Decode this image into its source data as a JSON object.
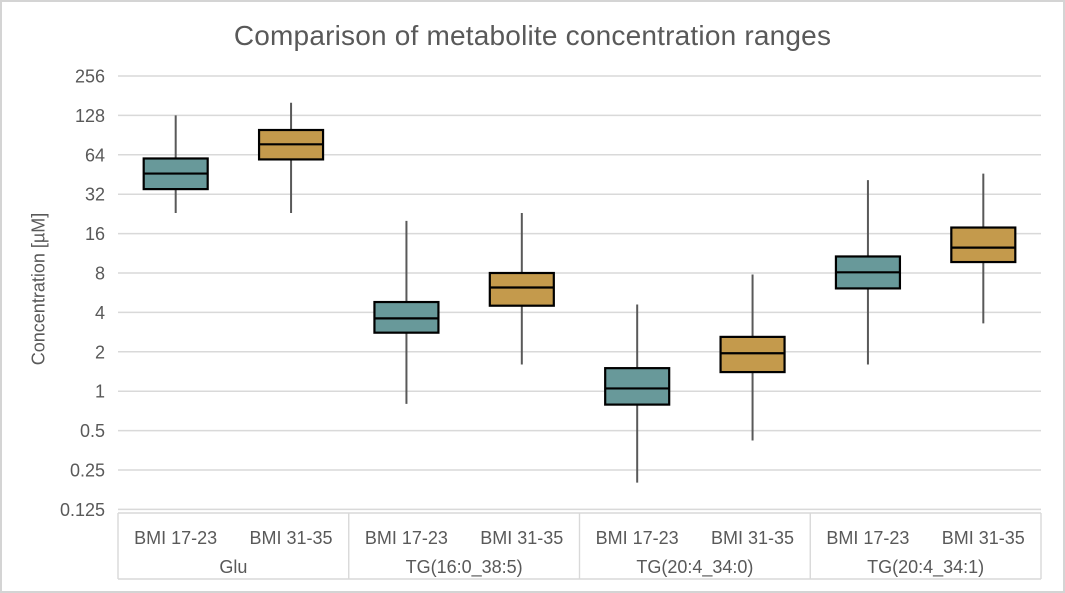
{
  "chart_data": {
    "type": "box",
    "title": "Comparison of metabolite concentration ranges",
    "ylabel": "Concentration [µM]",
    "y_scale": "log2",
    "ylim": [
      0.125,
      256
    ],
    "y_ticks": [
      256,
      128,
      64,
      32,
      16,
      8,
      4,
      2,
      1,
      0.5,
      0.25,
      0.125
    ],
    "grid": true,
    "legend": "none",
    "series": [
      {
        "name": "BMI 17-23",
        "color": "#68999a"
      },
      {
        "name": "BMI 31-35",
        "color": "#c49a4c"
      }
    ],
    "groups": [
      {
        "label": "Glu",
        "boxes": [
          {
            "series": "BMI 17-23",
            "whisker_low": 23,
            "q1": 35,
            "median": 46,
            "q3": 60,
            "whisker_high": 128
          },
          {
            "series": "BMI 31-35",
            "whisker_low": 23,
            "q1": 59,
            "median": 77,
            "q3": 99,
            "whisker_high": 160
          }
        ]
      },
      {
        "label": "TG(16:0_38:5)",
        "boxes": [
          {
            "series": "BMI 17-23",
            "whisker_low": 0.8,
            "q1": 2.8,
            "median": 3.6,
            "q3": 4.8,
            "whisker_high": 20
          },
          {
            "series": "BMI 31-35",
            "whisker_low": 1.6,
            "q1": 4.5,
            "median": 6.2,
            "q3": 8.0,
            "whisker_high": 23
          }
        ]
      },
      {
        "label": "TG(20:4_34:0)",
        "boxes": [
          {
            "series": "BMI 17-23",
            "whisker_low": 0.2,
            "q1": 0.79,
            "median": 1.05,
            "q3": 1.5,
            "whisker_high": 4.6
          },
          {
            "series": "BMI 31-35",
            "whisker_low": 0.42,
            "q1": 1.4,
            "median": 1.95,
            "q3": 2.6,
            "whisker_high": 7.8
          }
        ]
      },
      {
        "label": "TG(20:4_34:1)",
        "boxes": [
          {
            "series": "BMI 17-23",
            "whisker_low": 1.6,
            "q1": 6.1,
            "median": 8.1,
            "q3": 10.7,
            "whisker_high": 41
          },
          {
            "series": "BMI 31-35",
            "whisker_low": 3.3,
            "q1": 9.7,
            "median": 12.5,
            "q3": 17.8,
            "whisker_high": 46
          }
        ]
      }
    ]
  },
  "styles": {
    "title_color": "#595959",
    "text_color": "#595959",
    "gridline_color": "#d9d9d9",
    "axis_table_line_color": "#d9d9d9",
    "box_border_color": "#000000",
    "whisker_color": "#595959",
    "frame_border_color": "#d4d4d4",
    "background_color": "#ffffff"
  }
}
